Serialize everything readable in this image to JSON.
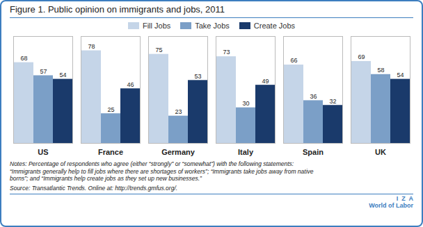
{
  "chart_data": {
    "type": "bar",
    "title": "Figure 1. Public opinion on immigrants and jobs, 2011",
    "categories": [
      "US",
      "France",
      "Germany",
      "Italy",
      "Spain",
      "UK"
    ],
    "series": [
      {
        "name": "Fill Jobs",
        "color": "#c5d5e8",
        "values": [
          68,
          78,
          75,
          73,
          66,
          69
        ]
      },
      {
        "name": "Take Jobs",
        "color": "#7b9fc7",
        "values": [
          57,
          25,
          23,
          30,
          36,
          58
        ]
      },
      {
        "name": "Create Jobs",
        "color": "#1a3a6b",
        "values": [
          54,
          46,
          53,
          49,
          32,
          54
        ]
      }
    ],
    "ylim": [
      0,
      90
    ],
    "yticks": [],
    "grid": false,
    "legend": "top",
    "data_labels": true,
    "tick_labels": "x",
    "annotations": [
      "Notes: Percentage of respondents who agree (either “strongly” or “somewhat”) with the following statements:",
      "“Immigrants generally help to fill jobs where there are shortages of workers”; “Immigrants take jobs away from native",
      "borns”; and “Immigrants help create jobs as they set up new businesses.”",
      "Source: Transatlantic Trends. Online at: http://trends.gmfus.org/.",
      "I  Z  A",
      "World of Labor"
    ]
  }
}
